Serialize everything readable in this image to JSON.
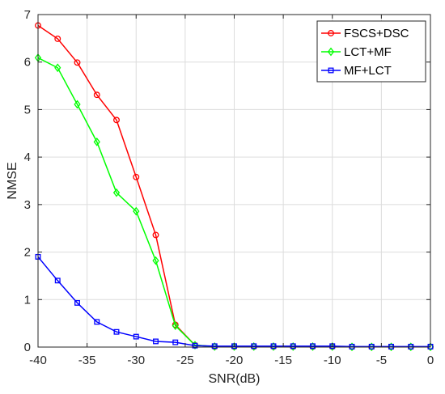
{
  "chart_data": {
    "type": "line",
    "xlabel": "SNR(dB)",
    "ylabel": "NMSE",
    "xlim": [
      -40,
      0
    ],
    "ylim": [
      0,
      7
    ],
    "xticks": [
      -40,
      -35,
      -30,
      -25,
      -20,
      -15,
      -10,
      -5,
      0
    ],
    "yticks": [
      0,
      1,
      2,
      3,
      4,
      5,
      6,
      7
    ],
    "xtick_labels": [
      "-40",
      "-35",
      "-30",
      "-25",
      "-20",
      "-15",
      "-10",
      "-5",
      "0"
    ],
    "ytick_labels": [
      "0",
      "1",
      "2",
      "3",
      "4",
      "5",
      "6",
      "7"
    ],
    "grid": true,
    "legend_position": "top-right",
    "x": [
      -40,
      -38,
      -36,
      -34,
      -32,
      -30,
      -28,
      -26,
      -24,
      -22,
      -20,
      -18,
      -16,
      -14,
      -12,
      -10,
      -8,
      -6,
      -4,
      -2,
      0
    ],
    "series": [
      {
        "name": "FSCS+DSC",
        "color": "#ff0000",
        "marker": "circle",
        "values": [
          6.77,
          6.49,
          5.99,
          5.31,
          4.78,
          3.58,
          2.36,
          0.47,
          0.04,
          0.01,
          0.01,
          0.01,
          0.01,
          0.01,
          0.01,
          0.01,
          0.005,
          0.005,
          0.005,
          0.005,
          0.005
        ]
      },
      {
        "name": "LCT+MF",
        "color": "#00ff00",
        "marker": "diamond",
        "values": [
          6.09,
          5.88,
          5.11,
          4.32,
          3.25,
          2.86,
          1.82,
          0.45,
          0.04,
          0.01,
          0.01,
          0.01,
          0.01,
          0.01,
          0.01,
          0.01,
          0.005,
          0.005,
          0.005,
          0.005,
          0.005
        ]
      },
      {
        "name": "MF+LCT",
        "color": "#0000ff",
        "marker": "square",
        "values": [
          1.9,
          1.4,
          0.93,
          0.53,
          0.32,
          0.22,
          0.12,
          0.1,
          0.03,
          0.02,
          0.02,
          0.02,
          0.02,
          0.02,
          0.02,
          0.02,
          0.01,
          0.01,
          0.01,
          0.01,
          0.01
        ]
      }
    ]
  }
}
